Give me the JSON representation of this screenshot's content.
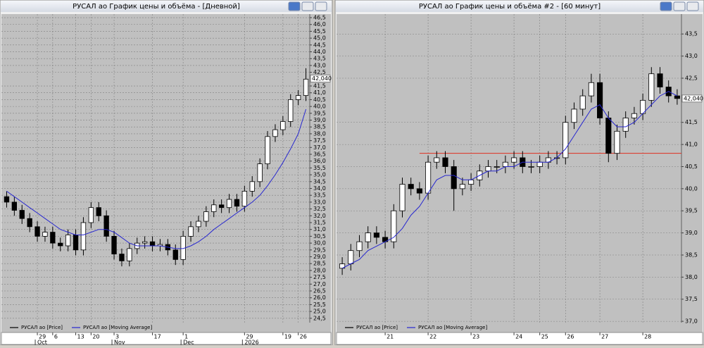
{
  "chart_data": [
    {
      "type": "candlestick",
      "title": "РУСАЛ ао График цены и объёма - [Дневной]",
      "categories": [
        null,
        null,
        null,
        null,
        "29",
        null,
        "6",
        null,
        null,
        "13",
        null,
        "20",
        null,
        null,
        "3",
        null,
        null,
        null,
        null,
        "17",
        null,
        null,
        null,
        "1",
        null,
        null,
        null,
        null,
        null,
        null,
        null,
        "29",
        null,
        null,
        null,
        null,
        "19",
        null,
        "26",
        null
      ],
      "periods": [
        null,
        null,
        null,
        null,
        "Oct",
        null,
        null,
        null,
        null,
        null,
        null,
        null,
        null,
        null,
        "Nov",
        null,
        null,
        null,
        null,
        null,
        null,
        null,
        null,
        "Dec",
        null,
        null,
        null,
        null,
        null,
        null,
        null,
        "2026",
        null,
        null,
        null,
        null,
        null,
        null,
        null,
        null
      ],
      "series": [
        {
          "name": "РУСАЛ ао [Price]",
          "color": "#000000",
          "open": [
            33.4,
            33.0,
            32.4,
            31.8,
            31.2,
            30.5,
            30.8,
            30.0,
            29.8,
            30.6,
            29.5,
            31.5,
            32.6,
            32.0,
            30.5,
            29.2,
            28.7,
            29.6,
            30.0,
            30.1,
            29.8,
            29.9,
            29.5,
            28.8,
            30.5,
            31.2,
            31.6,
            32.3,
            32.8,
            32.6,
            33.2,
            32.7,
            33.8,
            34.5,
            35.8,
            37.8,
            38.3,
            38.9,
            40.5,
            40.8
          ],
          "high": [
            33.8,
            33.4,
            32.8,
            32.2,
            31.6,
            31.2,
            31.2,
            30.4,
            31.0,
            31.0,
            31.9,
            33.0,
            33.0,
            32.4,
            30.9,
            29.6,
            30.0,
            30.4,
            30.5,
            30.5,
            30.3,
            30.3,
            29.9,
            30.9,
            31.6,
            32.0,
            32.7,
            33.2,
            33.2,
            33.6,
            33.6,
            34.2,
            34.9,
            36.2,
            38.2,
            38.7,
            39.3,
            40.9,
            41.2,
            42.8
          ],
          "low": [
            32.6,
            32.0,
            31.4,
            30.8,
            30.1,
            30.1,
            29.6,
            29.4,
            29.4,
            29.1,
            29.1,
            31.1,
            31.6,
            30.1,
            28.8,
            28.3,
            28.3,
            29.2,
            29.6,
            29.4,
            29.4,
            29.1,
            28.4,
            28.4,
            30.1,
            30.8,
            31.2,
            31.9,
            32.2,
            32.2,
            32.3,
            32.3,
            33.4,
            34.1,
            35.4,
            37.4,
            37.9,
            38.5,
            40.1,
            40.4
          ],
          "close": [
            33.0,
            32.4,
            31.8,
            31.2,
            30.5,
            30.8,
            30.0,
            29.8,
            30.6,
            29.5,
            31.5,
            32.6,
            32.0,
            30.5,
            29.2,
            28.7,
            29.6,
            30.0,
            30.1,
            29.8,
            29.9,
            29.5,
            28.8,
            30.5,
            31.2,
            31.6,
            32.3,
            32.8,
            32.6,
            33.2,
            32.7,
            33.8,
            34.5,
            35.8,
            37.8,
            38.3,
            38.9,
            40.5,
            40.8,
            42.0
          ]
        },
        {
          "name": "РУСАЛ ао [Moving Average]",
          "color": "#2828d0",
          "values": [
            33.8,
            33.4,
            33.0,
            32.6,
            32.2,
            31.8,
            31.4,
            31.0,
            30.8,
            30.6,
            30.6,
            30.8,
            31.0,
            31.0,
            30.8,
            30.4,
            30.0,
            29.8,
            29.8,
            29.8,
            29.8,
            29.7,
            29.6,
            29.6,
            29.8,
            30.1,
            30.5,
            31.0,
            31.4,
            31.8,
            32.2,
            32.6,
            33.0,
            33.5,
            34.2,
            35.0,
            35.9,
            36.9,
            38.0,
            39.8
          ]
        }
      ],
      "up_color": "#ffffff",
      "down_color": "#000000",
      "last_price": 42.04,
      "last_price_label": "42,040",
      "ylim": [
        24.18,
        46.76
      ],
      "yticks": [
        {
          "value": 24.5,
          "label": "24,5"
        },
        {
          "value": 25,
          "label": "25,0"
        },
        {
          "value": 25.5,
          "label": "25,5"
        },
        {
          "value": 26,
          "label": "26,0"
        },
        {
          "value": 26.5,
          "label": "26,5"
        },
        {
          "value": 27,
          "label": "27,0"
        },
        {
          "value": 27.5,
          "label": "27,5"
        },
        {
          "value": 28,
          "label": "28,0"
        },
        {
          "value": 28.5,
          "label": "28,5"
        },
        {
          "value": 29,
          "label": "29,0"
        },
        {
          "value": 29.5,
          "label": "29,5"
        },
        {
          "value": 30,
          "label": "30,0"
        },
        {
          "value": 30.5,
          "label": "30,5"
        },
        {
          "value": 31,
          "label": "31,0"
        },
        {
          "value": 31.5,
          "label": "31,5"
        },
        {
          "value": 32,
          "label": "32,0"
        },
        {
          "value": 32.5,
          "label": "32,5"
        },
        {
          "value": 33,
          "label": "33,0"
        },
        {
          "value": 33.5,
          "label": "33,5"
        },
        {
          "value": 34,
          "label": "34,0"
        },
        {
          "value": 34.5,
          "label": "34,5"
        },
        {
          "value": 35,
          "label": "35,0"
        },
        {
          "value": 35.5,
          "label": "35,5"
        },
        {
          "value": 36,
          "label": "36,0"
        },
        {
          "value": 36.5,
          "label": "36,5"
        },
        {
          "value": 37,
          "label": "37,0"
        },
        {
          "value": 37.5,
          "label": "37,5"
        },
        {
          "value": 38,
          "label": "38,0"
        },
        {
          "value": 38.5,
          "label": "38,5"
        },
        {
          "value": 39,
          "label": "39,0"
        },
        {
          "value": 39.5,
          "label": "39,5"
        },
        {
          "value": 40,
          "label": "40,0"
        },
        {
          "value": 40.5,
          "label": "40,5"
        },
        {
          "value": 41,
          "label": "41,0"
        },
        {
          "value": 41.5,
          "label": "41,5"
        },
        {
          "value": 42.5,
          "label": "42,5"
        },
        {
          "value": 43,
          "label": "43,0"
        },
        {
          "value": 43.5,
          "label": "43,5"
        },
        {
          "value": 44,
          "label": "44,0"
        },
        {
          "value": 44.5,
          "label": "44,5"
        },
        {
          "value": 45,
          "label": "45,0"
        },
        {
          "value": 45.5,
          "label": "45,5"
        },
        {
          "value": 46,
          "label": "46,0"
        },
        {
          "value": 46.5,
          "label": "46,5"
        }
      ],
      "grid": true
    },
    {
      "type": "candlestick",
      "title": "РУСАЛ ао График цены и объёма #2 - [60 минут]",
      "categories": [
        null,
        null,
        null,
        null,
        null,
        "21",
        null,
        null,
        null,
        null,
        "22",
        null,
        null,
        null,
        null,
        "23",
        null,
        null,
        null,
        null,
        "24",
        null,
        null,
        "25",
        null,
        null,
        "26",
        null,
        null,
        null,
        "27",
        null,
        null,
        null,
        null,
        "28",
        null,
        null,
        null,
        null
      ],
      "series": [
        {
          "name": "РУСАЛ ао [Price]",
          "color": "#000000",
          "open": [
            38.2,
            38.3,
            38.6,
            38.8,
            39.0,
            38.9,
            38.8,
            39.5,
            40.1,
            40.0,
            39.9,
            40.6,
            40.7,
            40.5,
            40.0,
            40.1,
            40.2,
            40.4,
            40.5,
            40.5,
            40.6,
            40.7,
            40.5,
            40.5,
            40.6,
            40.7,
            40.7,
            41.5,
            41.8,
            42.1,
            42.4,
            41.6,
            40.8,
            41.3,
            41.6,
            41.7,
            42.0,
            42.6,
            42.3,
            42.1
          ],
          "high": [
            38.45,
            38.75,
            38.95,
            39.15,
            39.15,
            39.05,
            39.65,
            40.25,
            40.25,
            40.15,
            40.75,
            40.85,
            40.85,
            40.65,
            40.25,
            40.35,
            40.55,
            40.65,
            40.65,
            40.75,
            40.85,
            40.85,
            40.65,
            40.75,
            40.85,
            40.85,
            41.65,
            41.95,
            42.25,
            42.6,
            42.6,
            41.75,
            41.45,
            41.75,
            41.85,
            42.15,
            42.75,
            42.75,
            42.45,
            42.25
          ],
          "low": [
            38.05,
            38.15,
            38.45,
            38.65,
            38.75,
            38.65,
            38.65,
            39.35,
            39.85,
            39.75,
            39.75,
            40.45,
            40.35,
            39.5,
            39.85,
            39.95,
            40.05,
            40.25,
            40.35,
            40.35,
            40.45,
            40.35,
            40.35,
            40.35,
            40.45,
            40.55,
            40.55,
            41.35,
            41.65,
            41.95,
            41.45,
            40.6,
            40.65,
            41.15,
            41.45,
            41.55,
            41.85,
            42.15,
            41.95,
            41.9
          ],
          "close": [
            38.3,
            38.6,
            38.8,
            39.0,
            38.9,
            38.8,
            39.5,
            40.1,
            40.0,
            39.9,
            40.6,
            40.7,
            40.5,
            40.0,
            40.1,
            40.2,
            40.4,
            40.5,
            40.5,
            40.6,
            40.7,
            40.5,
            40.5,
            40.6,
            40.7,
            40.7,
            41.5,
            41.8,
            42.1,
            42.4,
            41.6,
            40.8,
            41.3,
            41.6,
            41.7,
            42.0,
            42.6,
            42.3,
            42.1,
            42.04
          ]
        },
        {
          "name": "РУСАЛ ао [Moving Average]",
          "color": "#2828d0",
          "values": [
            38.2,
            38.3,
            38.4,
            38.6,
            38.7,
            38.8,
            38.9,
            39.1,
            39.4,
            39.6,
            39.9,
            40.2,
            40.3,
            40.3,
            40.2,
            40.2,
            40.3,
            40.4,
            40.4,
            40.5,
            40.5,
            40.6,
            40.6,
            40.6,
            40.6,
            40.7,
            40.9,
            41.2,
            41.5,
            41.8,
            41.9,
            41.6,
            41.4,
            41.4,
            41.5,
            41.7,
            41.9,
            42.1,
            42.2,
            42.1
          ]
        }
      ],
      "up_color": "#ffffff",
      "down_color": "#000000",
      "hline": {
        "value": 40.8,
        "color": "#e03020"
      },
      "last_price": 42.04,
      "last_price_label": "42,040",
      "ylim": [
        36.97,
        43.95
      ],
      "yticks": [
        {
          "value": 37,
          "label": "37,0"
        },
        {
          "value": 37.5,
          "label": "37,5"
        },
        {
          "value": 38,
          "label": "38,0"
        },
        {
          "value": 38.5,
          "label": "38,5"
        },
        {
          "value": 39,
          "label": "39,0"
        },
        {
          "value": 39.5,
          "label": "39,5"
        },
        {
          "value": 40,
          "label": "40,0"
        },
        {
          "value": 40.5,
          "label": "40,5"
        },
        {
          "value": 41,
          "label": "41,0"
        },
        {
          "value": 41.5,
          "label": "41,5"
        },
        {
          "value": 42.5,
          "label": "42,5"
        },
        {
          "value": 43,
          "label": "43,0"
        },
        {
          "value": 43.5,
          "label": "43,5"
        }
      ],
      "grid": true
    }
  ]
}
